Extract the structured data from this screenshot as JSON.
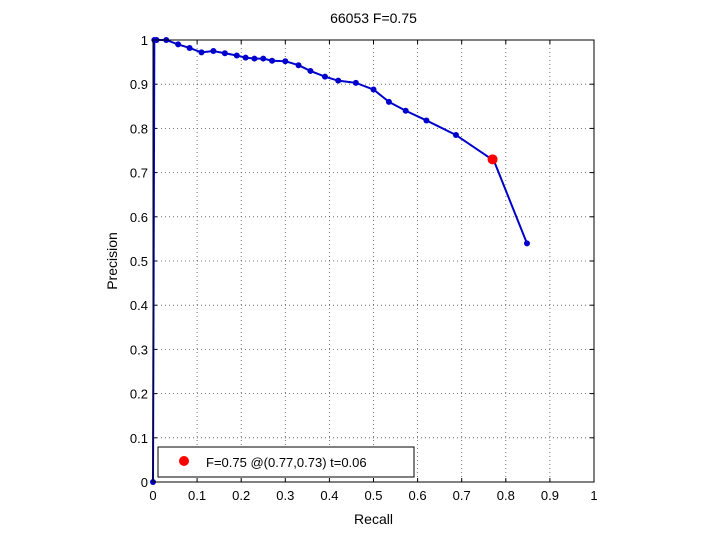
{
  "chart_data": {
    "type": "line",
    "title": "66053 F=0.75",
    "xlabel": "Recall",
    "ylabel": "Precision",
    "xlim": [
      0,
      1
    ],
    "ylim": [
      0,
      1
    ],
    "xticks": [
      "0",
      "0.1",
      "0.2",
      "0.3",
      "0.4",
      "0.5",
      "0.6",
      "0.7",
      "0.8",
      "0.9",
      "1"
    ],
    "yticks": [
      "0",
      "0.1",
      "0.2",
      "0.3",
      "0.4",
      "0.5",
      "0.6",
      "0.7",
      "0.8",
      "0.9",
      "1"
    ],
    "grid": true,
    "series": [
      {
        "color": "#0000cc",
        "x": [
          0.0,
          0.003,
          0.008,
          0.03,
          0.057,
          0.083,
          0.11,
          0.137,
          0.163,
          0.19,
          0.21,
          0.23,
          0.25,
          0.27,
          0.3,
          0.33,
          0.357,
          0.39,
          0.42,
          0.46,
          0.5,
          0.535,
          0.573,
          0.62,
          0.687,
          0.773,
          0.848
        ],
        "y": [
          0.0,
          1.0,
          1.0,
          1.0,
          0.99,
          0.982,
          0.972,
          0.975,
          0.97,
          0.965,
          0.96,
          0.958,
          0.958,
          0.953,
          0.952,
          0.943,
          0.93,
          0.917,
          0.908,
          0.903,
          0.888,
          0.86,
          0.84,
          0.818,
          0.785,
          0.727,
          0.54
        ]
      }
    ],
    "highlight": {
      "x": 0.77,
      "y": 0.73,
      "color": "#ff0000"
    },
    "legend": {
      "position": "bottom-left",
      "label": "F=0.75 @(0.77,0.73) t=0.06"
    }
  }
}
